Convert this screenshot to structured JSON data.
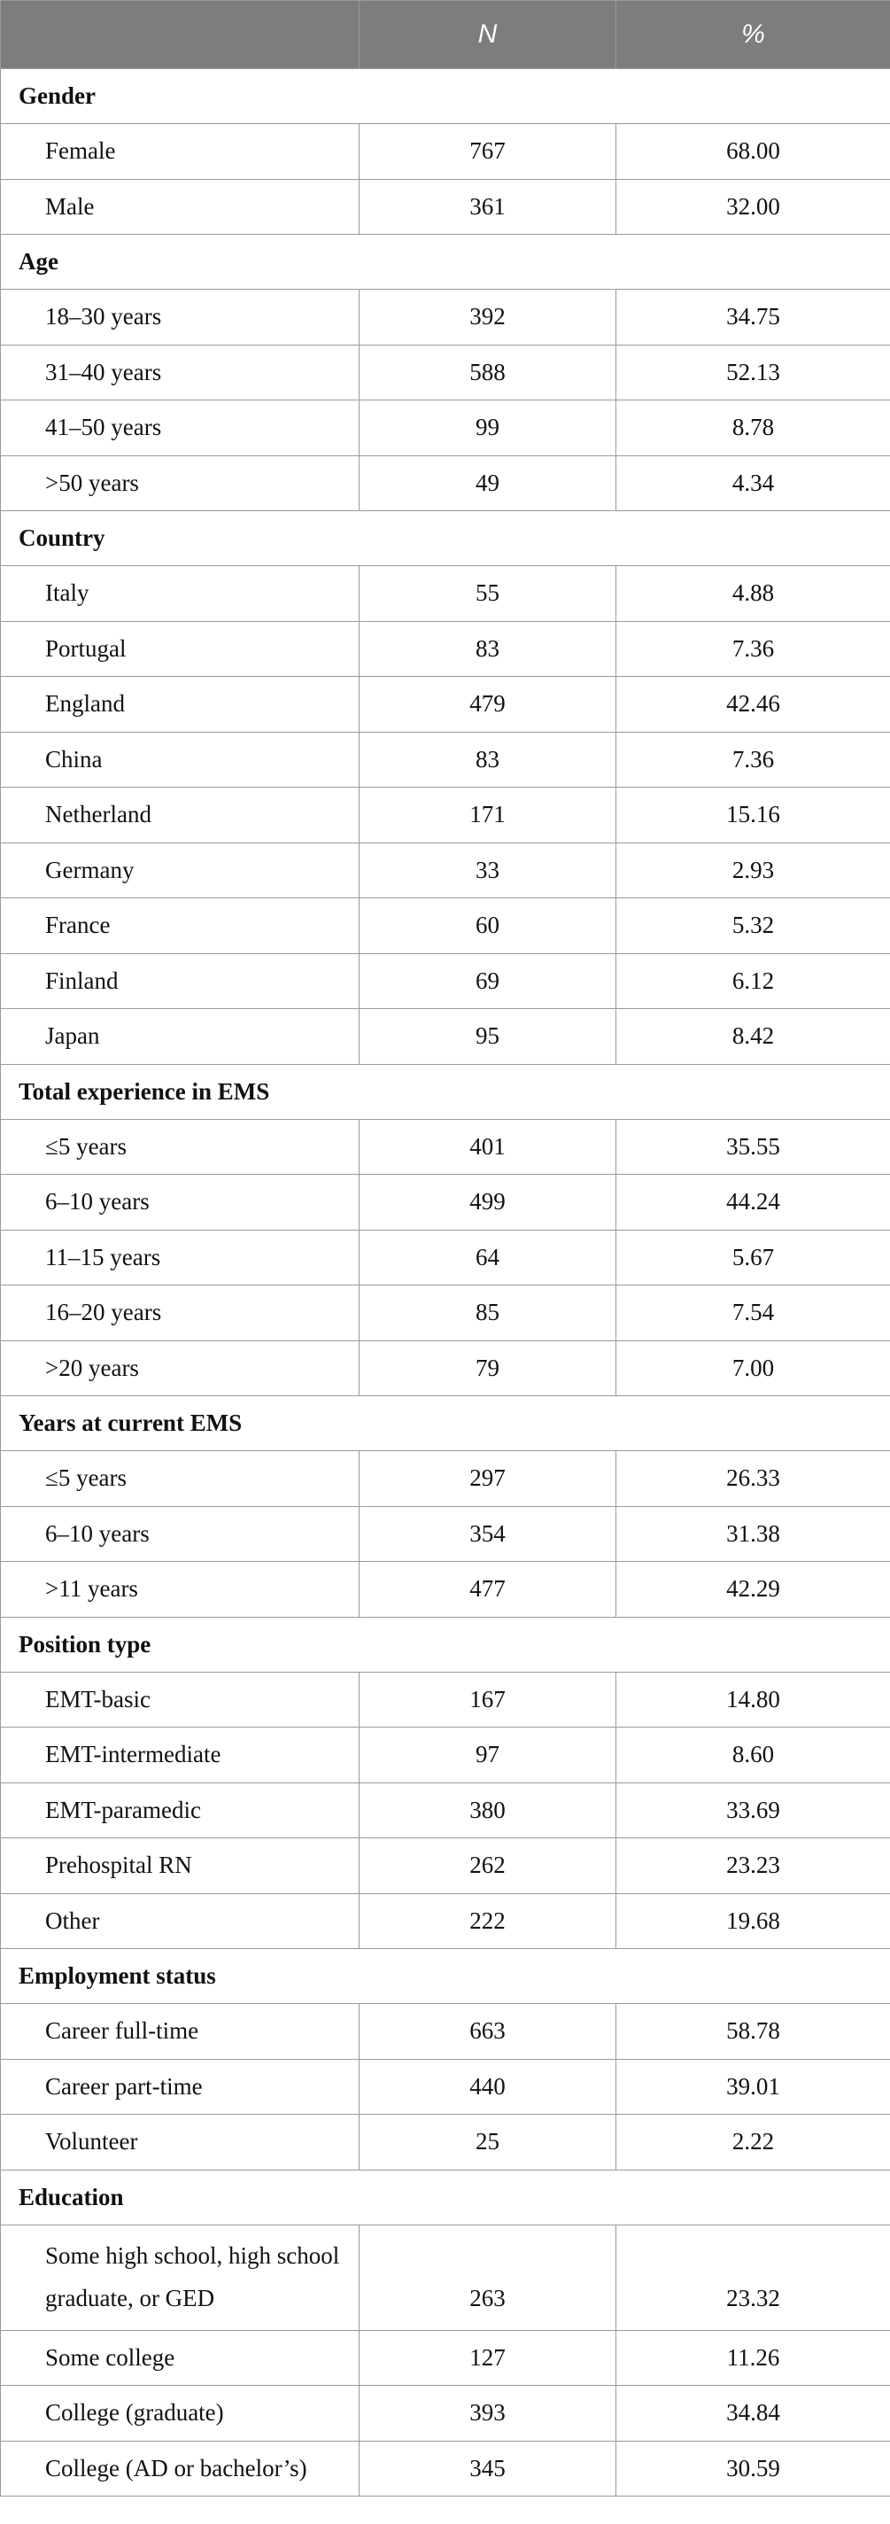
{
  "header": {
    "col_label": "",
    "col_n": "N",
    "col_pct": "%"
  },
  "sections": [
    {
      "title": "Gender",
      "rows": [
        {
          "label": "Female",
          "n": "767",
          "pct": "68.00"
        },
        {
          "label": "Male",
          "n": "361",
          "pct": "32.00"
        }
      ]
    },
    {
      "title": "Age",
      "rows": [
        {
          "label": "18–30 years",
          "n": "392",
          "pct": "34.75"
        },
        {
          "label": "31–40 years",
          "n": "588",
          "pct": "52.13"
        },
        {
          "label": "41–50 years",
          "n": "99",
          "pct": "8.78"
        },
        {
          "label": ">50 years",
          "n": "49",
          "pct": "4.34"
        }
      ]
    },
    {
      "title": "Country",
      "rows": [
        {
          "label": "Italy",
          "n": "55",
          "pct": "4.88"
        },
        {
          "label": "Portugal",
          "n": "83",
          "pct": "7.36"
        },
        {
          "label": "England",
          "n": "479",
          "pct": "42.46"
        },
        {
          "label": "China",
          "n": "83",
          "pct": "7.36"
        },
        {
          "label": "Netherland",
          "n": "171",
          "pct": "15.16"
        },
        {
          "label": "Germany",
          "n": "33",
          "pct": "2.93"
        },
        {
          "label": "France",
          "n": "60",
          "pct": "5.32"
        },
        {
          "label": "Finland",
          "n": "69",
          "pct": "6.12"
        },
        {
          "label": "Japan",
          "n": "95",
          "pct": "8.42"
        }
      ]
    },
    {
      "title": "Total experience in EMS",
      "rows": [
        {
          "label": "≤5 years",
          "n": "401",
          "pct": "35.55"
        },
        {
          "label": "6–10 years",
          "n": "499",
          "pct": "44.24"
        },
        {
          "label": "11–15 years",
          "n": "64",
          "pct": "5.67"
        },
        {
          "label": "16–20 years",
          "n": "85",
          "pct": "7.54"
        },
        {
          "label": ">20 years",
          "n": "79",
          "pct": "7.00"
        }
      ]
    },
    {
      "title": "Years at current EMS",
      "rows": [
        {
          "label": "≤5 years",
          "n": "297",
          "pct": "26.33"
        },
        {
          "label": "6–10 years",
          "n": "354",
          "pct": "31.38"
        },
        {
          "label": ">11 years",
          "n": "477",
          "pct": "42.29"
        }
      ]
    },
    {
      "title": "Position type",
      "rows": [
        {
          "label": "EMT-basic",
          "n": "167",
          "pct": "14.80"
        },
        {
          "label": "EMT-intermediate",
          "n": "97",
          "pct": "8.60"
        },
        {
          "label": "EMT-paramedic",
          "n": "380",
          "pct": "33.69"
        },
        {
          "label": "Prehospital RN",
          "n": "262",
          "pct": "23.23"
        },
        {
          "label": "Other",
          "n": "222",
          "pct": "19.68"
        }
      ]
    },
    {
      "title": "Employment status",
      "rows": [
        {
          "label": "Career full-time",
          "n": "663",
          "pct": "58.78"
        },
        {
          "label": "Career part-time",
          "n": "440",
          "pct": "39.01"
        },
        {
          "label": "Volunteer",
          "n": "25",
          "pct": "2.22"
        }
      ]
    },
    {
      "title": "Education",
      "rows": [
        {
          "label": "Some high school, high school graduate, or GED",
          "n": "263",
          "pct": "23.32",
          "tall": true
        },
        {
          "label": "Some college",
          "n": "127",
          "pct": "11.26"
        },
        {
          "label": "College (graduate)",
          "n": "393",
          "pct": "34.84"
        },
        {
          "label": "College (AD or bachelor’s)",
          "n": "345",
          "pct": "30.59"
        }
      ]
    }
  ]
}
